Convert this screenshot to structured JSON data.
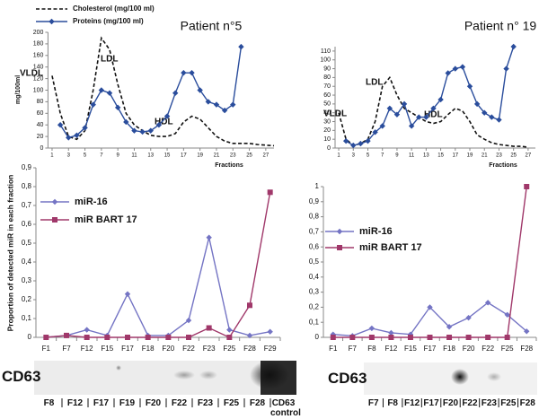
{
  "chart_data": [
    {
      "type": "line",
      "title": "Patient n°5",
      "x_label": "Fractions",
      "y_label": "mg/100ml",
      "annotations": [
        "VLDL",
        "LDL",
        "HDL"
      ],
      "x": [
        1,
        2,
        3,
        4,
        5,
        6,
        7,
        8,
        9,
        10,
        11,
        12,
        13,
        14,
        15,
        16,
        17,
        18,
        19,
        20,
        21,
        22,
        23,
        24,
        25,
        26,
        27,
        28
      ],
      "xlim": [
        0.5,
        28
      ],
      "xticks": [
        1,
        3,
        5,
        7,
        9,
        11,
        13,
        15,
        17,
        19,
        21,
        23,
        25,
        27
      ],
      "ylim": [
        0,
        200
      ],
      "yticks": [
        0,
        20,
        40,
        60,
        80,
        100,
        120,
        140,
        160,
        180,
        200
      ],
      "series": [
        {
          "name": "Cholesterol (mg/100 ml)",
          "color": "#111111",
          "line_style": "dashed",
          "marker": "none",
          "values": [
            125,
            60,
            20,
            15,
            30,
            100,
            190,
            170,
            110,
            60,
            40,
            30,
            22,
            20,
            20,
            25,
            45,
            55,
            50,
            35,
            20,
            12,
            8,
            8,
            8,
            6,
            5,
            4
          ]
        },
        {
          "name": "Proteins (mg/100 ml)",
          "color": "#2a4d9c",
          "line_style": "solid",
          "marker": "diamond",
          "values": [
            null,
            40,
            18,
            22,
            35,
            75,
            100,
            95,
            70,
            45,
            30,
            28,
            30,
            40,
            55,
            95,
            130,
            130,
            100,
            80,
            75,
            65,
            75,
            175,
            null,
            null,
            null,
            null
          ]
        }
      ]
    },
    {
      "type": "line",
      "title": "Patient n° 19",
      "x_label": "Fractions",
      "annotations": [
        "VLDL",
        "LDL",
        "HDL"
      ],
      "x": [
        1,
        2,
        3,
        4,
        5,
        6,
        7,
        8,
        9,
        10,
        11,
        12,
        13,
        14,
        15,
        16,
        17,
        18,
        19,
        20,
        21,
        22,
        23,
        24,
        25,
        26,
        27
      ],
      "xlim": [
        0.5,
        28
      ],
      "xticks": [
        1,
        3,
        5,
        7,
        9,
        11,
        13,
        15,
        17,
        19,
        21,
        23,
        25,
        27
      ],
      "ylim": [
        0,
        115
      ],
      "yticks": [
        0,
        10,
        20,
        30,
        40,
        50,
        60,
        70,
        80,
        90,
        100,
        110
      ],
      "series": [
        {
          "color": "#111111",
          "line_style": "dashed",
          "marker": "none",
          "values": [
            40,
            10,
            3,
            5,
            10,
            30,
            70,
            80,
            60,
            45,
            40,
            35,
            30,
            28,
            30,
            38,
            45,
            42,
            30,
            15,
            10,
            6,
            4,
            3,
            2,
            2,
            1
          ]
        },
        {
          "color": "#2a4d9c",
          "line_style": "solid",
          "marker": "diamond",
          "values": [
            null,
            8,
            3,
            5,
            8,
            18,
            25,
            45,
            38,
            50,
            25,
            35,
            35,
            45,
            55,
            85,
            90,
            92,
            70,
            50,
            40,
            35,
            32,
            90,
            115,
            null,
            null
          ]
        }
      ]
    },
    {
      "type": "line",
      "y_label": "Proportion of detected miR in each fraction",
      "categories": [
        "F1",
        "F7",
        "F12",
        "F15",
        "F17",
        "F18",
        "F20",
        "F22",
        "F23",
        "F25",
        "F28",
        "F29"
      ],
      "ylim": [
        0,
        0.9
      ],
      "yticks": [
        0,
        {
          "value": 0.1,
          "label": "0,1"
        },
        {
          "value": 0.2,
          "label": "0,2"
        },
        {
          "value": 0.3,
          "label": "0,3"
        },
        {
          "value": 0.4,
          "label": "0,4"
        },
        {
          "value": 0.5,
          "label": "0,5"
        },
        {
          "value": 0.6,
          "label": "0,6"
        },
        {
          "value": 0.7,
          "label": "0,7"
        },
        {
          "value": 0.8,
          "label": "0,8"
        },
        {
          "value": 0.9,
          "label": "0,9"
        }
      ],
      "series": [
        {
          "name": "miR-16",
          "color": "#7474c4",
          "line_style": "solid",
          "marker": "diamond",
          "values": [
            0,
            0.01,
            0.04,
            0.01,
            0.23,
            0.01,
            0.01,
            0.09,
            0.53,
            0.04,
            0.01,
            0.03
          ]
        },
        {
          "name": "miR BART 17",
          "color": "#a0386a",
          "line_style": "solid",
          "marker": "square",
          "values": [
            0,
            0.01,
            0,
            0,
            0,
            0,
            0,
            0,
            0.05,
            0,
            0.17,
            0.77
          ]
        }
      ]
    },
    {
      "type": "line",
      "categories": [
        "F1",
        "F7",
        "F8",
        "F12",
        "F15",
        "F17",
        "F18",
        "F20",
        "F22",
        "F25",
        "F28"
      ],
      "ylim": [
        0,
        1
      ],
      "yticks": [
        0,
        {
          "value": 0.1,
          "label": "0,1"
        },
        {
          "value": 0.2,
          "label": "0,2"
        },
        {
          "value": 0.3,
          "label": "0,3"
        },
        {
          "value": 0.4,
          "label": "0,4"
        },
        {
          "value": 0.5,
          "label": "0,5"
        },
        {
          "value": 0.6,
          "label": "0,6"
        },
        {
          "value": 0.7,
          "label": "0,7"
        },
        {
          "value": 0.8,
          "label": "0,8"
        },
        {
          "value": 0.9,
          "label": "0,9"
        },
        1
      ],
      "series": [
        {
          "name": "miR-16",
          "color": "#7474c4",
          "line_style": "solid",
          "marker": "diamond",
          "values": [
            0.02,
            0.01,
            0.06,
            0.03,
            0.02,
            0.2,
            0.07,
            0.13,
            0.23,
            0.15,
            0.04
          ]
        },
        {
          "name": "miR BART 17",
          "color": "#a0386a",
          "line_style": "solid",
          "marker": "square",
          "values": [
            0,
            0,
            0,
            0,
            0,
            0,
            0,
            0,
            0,
            0,
            1.0
          ]
        }
      ]
    }
  ],
  "blots": [
    {
      "label": "CD63",
      "lanes": [
        "F8",
        "F12",
        "F17",
        "F19",
        "F20",
        "F22",
        "F23",
        "F25",
        "F28",
        "CD63 control"
      ]
    },
    {
      "label": "CD63",
      "lanes": [
        "F7",
        "F8",
        "F12",
        "F17",
        "F20",
        "F22",
        "F23",
        "F25",
        "F28"
      ]
    }
  ]
}
